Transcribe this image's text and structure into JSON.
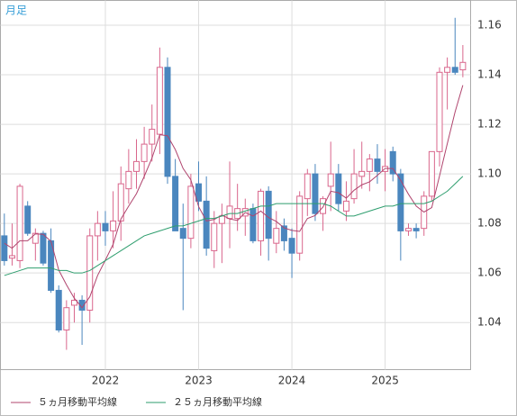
{
  "chart_data": {
    "type": "candlestick",
    "title": "月足",
    "categories": [
      null,
      null,
      null,
      null,
      null,
      null,
      null,
      null,
      null,
      null,
      null,
      null,
      null,
      "2022",
      null,
      null,
      null,
      null,
      null,
      null,
      null,
      null,
      null,
      null,
      null,
      "2023",
      null,
      null,
      null,
      null,
      null,
      null,
      null,
      null,
      null,
      null,
      null,
      "2024",
      null,
      null,
      null,
      null,
      null,
      null,
      null,
      null,
      null,
      null,
      null,
      "2025",
      null,
      null,
      null,
      null,
      null,
      null,
      null,
      null,
      null,
      null
    ],
    "open": [
      1.075,
      1.066,
      1.065,
      1.087,
      1.072,
      1.076,
      1.073,
      1.053,
      1.037,
      1.047,
      1.049,
      1.045,
      1.075,
      1.08,
      1.077,
      1.081,
      1.094,
      1.101,
      1.105,
      1.112,
      1.116,
      1.143,
      1.099,
      1.078,
      1.074,
      1.096,
      1.089,
      1.069,
      1.08,
      1.082,
      1.082,
      1.083,
      1.086,
      1.073,
      1.093,
      1.072,
      1.079,
      1.074,
      1.068,
      1.09,
      1.1,
      1.084,
      1.095,
      1.1,
      1.085,
      1.09,
      1.099,
      1.101,
      1.106,
      1.101,
      1.109,
      1.1,
      1.077,
      1.078,
      1.078,
      1.091,
      1.109,
      1.141,
      1.143,
      1.142
    ],
    "high": [
      1.084,
      1.08,
      1.096,
      1.089,
      1.078,
      1.077,
      1.078,
      1.055,
      1.049,
      1.052,
      1.051,
      1.078,
      1.085,
      1.085,
      1.093,
      1.103,
      1.11,
      1.114,
      1.119,
      1.128,
      1.151,
      1.147,
      1.106,
      1.088,
      1.1,
      1.105,
      1.099,
      1.085,
      1.088,
      1.105,
      1.096,
      1.09,
      1.088,
      1.094,
      1.095,
      1.085,
      1.082,
      1.078,
      1.093,
      1.102,
      1.104,
      1.091,
      1.113,
      1.104,
      1.097,
      1.11,
      1.113,
      1.108,
      1.112,
      1.11,
      1.111,
      1.102,
      1.08,
      1.08,
      1.093,
      1.108,
      1.143,
      1.147,
      1.163,
      1.152
    ],
    "low": [
      1.063,
      1.063,
      1.062,
      1.075,
      1.065,
      1.063,
      1.052,
      1.036,
      1.029,
      1.04,
      1.031,
      1.04,
      1.065,
      1.071,
      1.07,
      1.073,
      1.088,
      1.094,
      1.098,
      1.105,
      1.108,
      1.096,
      1.077,
      1.045,
      1.07,
      1.085,
      1.067,
      1.062,
      1.064,
      1.07,
      1.077,
      1.075,
      1.072,
      1.067,
      1.065,
      1.068,
      1.069,
      1.058,
      1.065,
      1.083,
      1.081,
      1.077,
      1.085,
      1.085,
      1.081,
      1.088,
      1.094,
      1.093,
      1.096,
      1.093,
      1.097,
      1.065,
      1.075,
      1.074,
      1.075,
      1.089,
      1.103,
      1.126,
      1.14,
      1.139
    ],
    "close": [
      1.065,
      1.067,
      1.095,
      1.076,
      1.076,
      1.064,
      1.053,
      1.037,
      1.046,
      1.049,
      1.045,
      1.075,
      1.08,
      1.077,
      1.081,
      1.096,
      1.101,
      1.105,
      1.112,
      1.118,
      1.143,
      1.099,
      1.077,
      1.074,
      1.095,
      1.089,
      1.07,
      1.08,
      1.083,
      1.087,
      1.086,
      1.086,
      1.073,
      1.093,
      1.074,
      1.078,
      1.073,
      1.068,
      1.091,
      1.1,
      1.084,
      1.09,
      1.1,
      1.088,
      1.089,
      1.1,
      1.101,
      1.106,
      1.101,
      1.103,
      1.1,
      1.077,
      1.078,
      1.077,
      1.091,
      1.109,
      1.141,
      1.143,
      1.141,
      1.145
    ],
    "up_color": "#d9668c",
    "down_color": "#4a86be",
    "series": [
      {
        "name": "５ヵ月移動平均線",
        "color": "#b0456e",
        "values": [
          1.072,
          1.07,
          1.073,
          1.073,
          1.0758,
          1.0756,
          1.0728,
          1.0612,
          1.0552,
          1.0498,
          1.046,
          1.0504,
          1.059,
          1.0652,
          1.0716,
          1.0818,
          1.087,
          1.092,
          1.099,
          1.1064,
          1.1158,
          1.1154,
          1.1098,
          1.1022,
          1.0976,
          1.0868,
          1.081,
          1.0816,
          1.0834,
          1.0818,
          1.0812,
          1.0844,
          1.083,
          1.085,
          1.0824,
          1.0808,
          1.0782,
          1.0772,
          1.0768,
          1.082,
          1.0832,
          1.0866,
          1.093,
          1.0924,
          1.0902,
          1.0934,
          1.0956,
          1.0968,
          1.0994,
          1.1022,
          1.1022,
          1.0974,
          1.0918,
          1.087,
          1.0846,
          1.0864,
          1.0992,
          1.1122,
          1.125,
          1.1358
        ]
      },
      {
        "name": "２５ヵ月移動平均線",
        "color": "#2e9e6e",
        "values": [
          1.059,
          1.06,
          1.061,
          1.062,
          1.062,
          1.062,
          1.062,
          1.061,
          1.061,
          1.06,
          1.06,
          1.061,
          1.063,
          1.065,
          1.067,
          1.069,
          1.071,
          1.073,
          1.075,
          1.076,
          1.077,
          1.078,
          1.079,
          1.079,
          1.08,
          1.081,
          1.082,
          1.082,
          1.083,
          1.084,
          1.084,
          1.085,
          1.086,
          1.087,
          1.087,
          1.088,
          1.088,
          1.088,
          1.088,
          1.088,
          1.088,
          1.088,
          1.087,
          1.085,
          1.083,
          1.083,
          1.084,
          1.085,
          1.086,
          1.087,
          1.087,
          1.088,
          1.088,
          1.088,
          1.088,
          1.089,
          1.091,
          1.093,
          1.096,
          1.099
        ]
      }
    ],
    "ylim": [
      1.021,
      1.17
    ],
    "yticks": [
      1.04,
      1.06,
      1.08,
      {
        "value": 1.1,
        "label": "1.10"
      },
      1.12,
      1.14,
      1.16
    ],
    "grid": true
  }
}
